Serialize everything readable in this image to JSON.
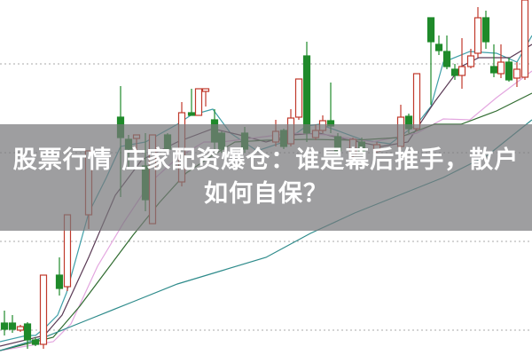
{
  "article": {
    "title": "股票行情  庄家配资爆仓：谁是幕后推手，散户如何自保？"
  },
  "chart": {
    "type": "candlestick",
    "up_color": "#c0392b",
    "down_color": "#1f8a2a",
    "ma_colors": [
      "#3f9fa8",
      "#5a3a55",
      "#e3a6df",
      "#2f6b2f",
      "#2e8b8b"
    ],
    "grid": "dotted horizontal"
  }
}
